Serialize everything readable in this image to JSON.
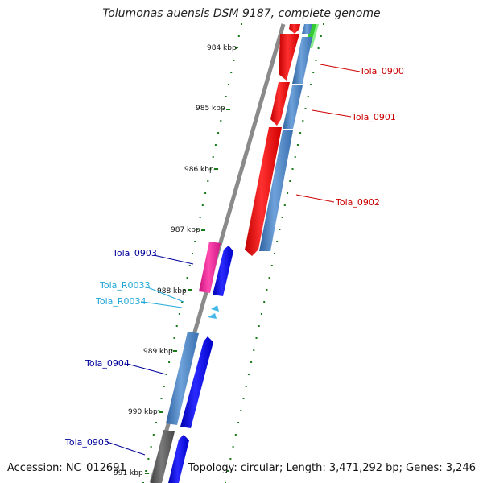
{
  "title": "Tolumonas auensis DSM 9187, complete genome",
  "footer": {
    "accession": "Accession: NC_012691",
    "summary": "Topology: circular; Length: 3,471,292 bp; Genes: 3,246"
  },
  "ticks": [
    {
      "label": "984 kbp",
      "kbp": 984
    },
    {
      "label": "985 kbp",
      "kbp": 985
    },
    {
      "label": "986 kbp",
      "kbp": 986
    },
    {
      "label": "987 kbp",
      "kbp": 987
    },
    {
      "label": "988 kbp",
      "kbp": 988
    },
    {
      "label": "989 kbp",
      "kbp": 989
    },
    {
      "label": "990 kbp",
      "kbp": 990
    },
    {
      "label": "991 kbp",
      "kbp": 991
    }
  ],
  "labels": {
    "tola_0900": "Tola_0900",
    "tola_0901": "Tola_0901",
    "tola_0902": "Tola_0902",
    "tola_0903": "Tola_0903",
    "tola_r0033": "Tola_R0033",
    "tola_r0034": "Tola_R0034",
    "tola_0904": "Tola_0904",
    "tola_0905": "Tola_0905"
  },
  "colors": {
    "cds_red": "#ff1010",
    "cds_blue": "#1010ff",
    "cds_pink": "#ff2a9a",
    "cds_steel": "#4f86c6",
    "rna_cyan": "#44b8e8",
    "gene_dark": "#606060",
    "backbone": "#8a8a8a",
    "tick_green": "#1a7a1a",
    "label_red": "#cc0000",
    "label_navy": "#000099",
    "label_cyan": "#22a8d8",
    "ring_green": "#33cc33"
  }
}
